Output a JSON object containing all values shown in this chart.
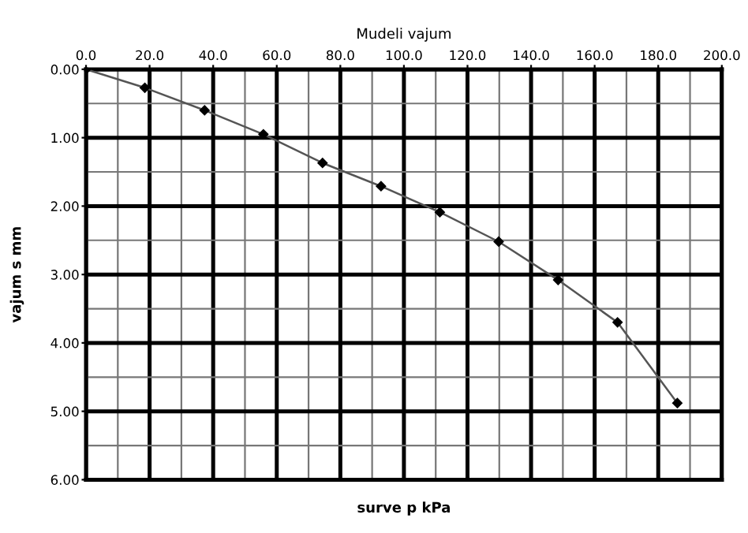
{
  "chart_data": {
    "type": "line",
    "title": "Mudeli vajum",
    "xlabel": "surve p kPa",
    "ylabel": "vajum s mm",
    "x": [
      0,
      18.5,
      37.3,
      55.8,
      74.4,
      92.8,
      111.3,
      129.8,
      148.5,
      167.2,
      186.0
    ],
    "series": [
      {
        "color": "#555555",
        "values": [
          0,
          0.27,
          0.6,
          0.95,
          1.37,
          1.71,
          2.09,
          2.52,
          3.08,
          3.7,
          4.88
        ]
      }
    ],
    "marker": "diamond",
    "line_style": "solid",
    "grid": true,
    "xlim": [
      0,
      200
    ],
    "ylim": [
      6,
      0
    ],
    "xticks": [
      {
        "value": 0,
        "label": "0.0"
      },
      {
        "value": 20,
        "label": "20.0"
      },
      {
        "value": 40,
        "label": "40.0"
      },
      {
        "value": 60,
        "label": "60.0"
      },
      {
        "value": 80,
        "label": "80.0"
      },
      {
        "value": 100,
        "label": "100.0"
      },
      {
        "value": 120,
        "label": "120.0"
      },
      {
        "value": 140,
        "label": "140.0"
      },
      {
        "value": 160,
        "label": "160.0"
      },
      {
        "value": 180,
        "label": "180.0"
      },
      {
        "value": 200,
        "label": "200.0"
      }
    ],
    "yticks": [
      {
        "value": 0,
        "label": "0.00"
      },
      {
        "value": 1,
        "label": "1.00"
      },
      {
        "value": 2,
        "label": "2.00"
      },
      {
        "value": 3,
        "label": "3.00"
      },
      {
        "value": 4,
        "label": "4.00"
      },
      {
        "value": 5,
        "label": "5.00"
      },
      {
        "value": 6,
        "label": "6.00"
      }
    ]
  }
}
